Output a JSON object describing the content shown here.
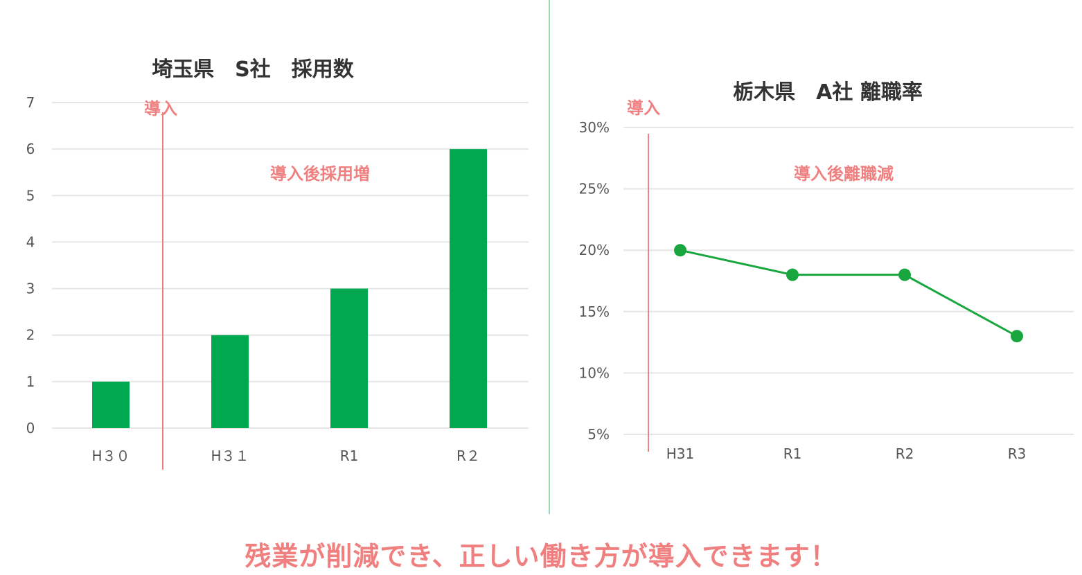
{
  "colors": {
    "bar": "#00a94f",
    "line": "#1aa63f",
    "marker": "#1aa63f",
    "intro_line": "#f07f7f",
    "annotation": "#f07f7f",
    "divider": "#9ad9b4",
    "grid": "#e6e6e6",
    "footer": "#f07f7f"
  },
  "chart_data": [
    {
      "type": "bar",
      "title": "埼玉県　S社　採用数",
      "categories": [
        "H３０",
        "H３１",
        "R1",
        "R２"
      ],
      "values": [
        1,
        2,
        3,
        6
      ],
      "ylim": [
        0,
        7
      ],
      "yticks": [
        "0",
        "1",
        "2",
        "3",
        "4",
        "5",
        "6",
        "7"
      ],
      "grid": true,
      "annotations": {
        "intro_label": "導入",
        "note": "導入後採用増"
      }
    },
    {
      "type": "line",
      "title": "栃木県　A社 離職率",
      "categories": [
        "H31",
        "R1",
        "R2",
        "R3"
      ],
      "values": [
        20,
        18,
        18,
        13
      ],
      "unit": "%",
      "ylim": [
        5,
        30
      ],
      "yticks": [
        "5%",
        "10%",
        "15%",
        "20%",
        "25%",
        "30%"
      ],
      "grid": true,
      "annotations": {
        "intro_label": "導入",
        "note": "導入後離職減"
      }
    }
  ],
  "footer": {
    "message": "残業が削減でき、正しい働き方が導入できます！"
  }
}
